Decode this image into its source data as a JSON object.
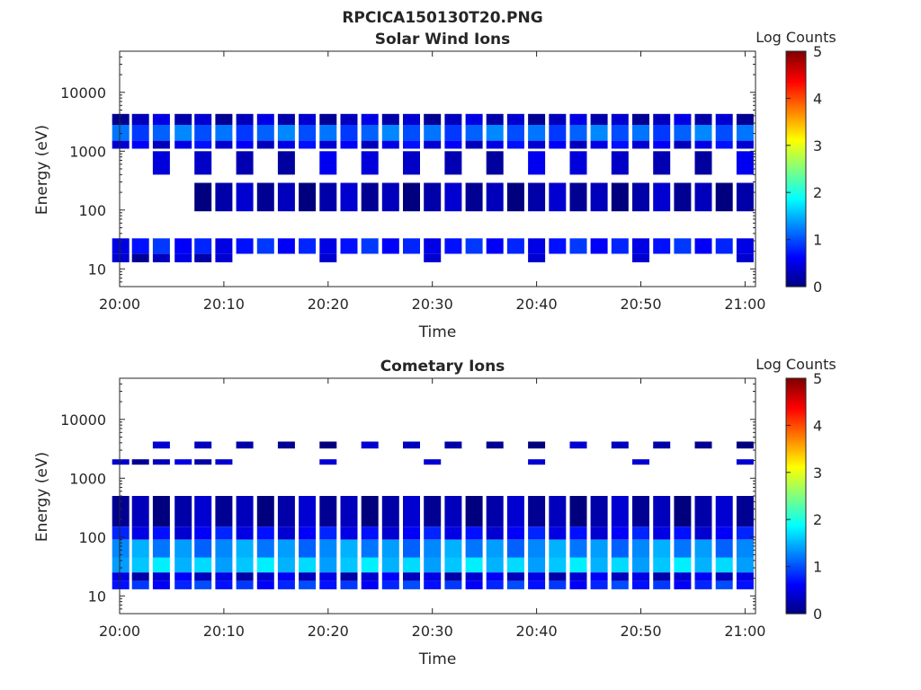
{
  "figure": {
    "suptitle": "RPCICA150130T20.PNG"
  },
  "colorbar": {
    "label": "Log Counts",
    "ticks": [
      "0",
      "1",
      "2",
      "3",
      "4",
      "5"
    ],
    "range": [
      0,
      5
    ],
    "colormap": [
      "#00007f",
      "#0000ff",
      "#007fff",
      "#00ffff",
      "#7fff7f",
      "#ffff00",
      "#ff7f00",
      "#ff0000",
      "#7f0000"
    ]
  },
  "chart_data": [
    {
      "type": "heatmap",
      "title": "Solar Wind Ions",
      "xlabel": "Time",
      "ylabel": "Energy (eV)",
      "x_tick_labels": [
        "20:00",
        "20:10",
        "20:20",
        "20:30",
        "20:40",
        "20:50",
        "21:00"
      ],
      "xlim_minutes": [
        0,
        61
      ],
      "y_tick_labels": [
        "10",
        "100",
        "1000",
        "10000"
      ],
      "y_scale": "log",
      "ylim": [
        5,
        50000
      ],
      "time_columns_minutes": [
        0.1,
        2.0,
        4.0,
        6.1,
        8.0,
        10.0,
        12.0,
        14.0,
        16.0,
        18.0,
        20.0,
        22.0,
        24.0,
        26.0,
        28.0,
        30.0,
        32.0,
        34.0,
        36.0,
        38.0,
        40.0,
        42.0,
        44.0,
        46.0,
        48.0,
        50.0,
        52.0,
        54.0,
        56.0,
        58.0,
        60.0
      ],
      "bands": [
        {
          "e_lo": 2800,
          "e_hi": 4300,
          "value": 0.3,
          "cols": "all_even"
        },
        {
          "e_lo": 1500,
          "e_hi": 2800,
          "value": 1.1,
          "cols": "all_even"
        },
        {
          "e_lo": 1100,
          "e_hi": 1500,
          "value": 0.5,
          "cols": "all_even"
        },
        {
          "e_lo": 400,
          "e_hi": 1000,
          "value": 0.35,
          "cols": "sparse"
        },
        {
          "e_lo": 95,
          "e_hi": 290,
          "value": 0.2,
          "cols": "from_8"
        },
        {
          "e_lo": 18,
          "e_hi": 33,
          "value": 0.7,
          "cols": "all"
        },
        {
          "e_lo": 13,
          "e_hi": 18,
          "value": 0.3,
          "cols": "early"
        }
      ]
    },
    {
      "type": "heatmap",
      "title": "Cometary Ions",
      "xlabel": "Time",
      "ylabel": "Energy (eV)",
      "x_tick_labels": [
        "20:00",
        "20:10",
        "20:20",
        "20:30",
        "20:40",
        "20:50",
        "21:00"
      ],
      "xlim_minutes": [
        0,
        61
      ],
      "y_tick_labels": [
        "10",
        "100",
        "1000",
        "10000"
      ],
      "y_scale": "log",
      "ylim": [
        5,
        50000
      ],
      "time_columns_minutes": [
        0.1,
        2.0,
        4.0,
        6.1,
        8.0,
        10.0,
        12.0,
        14.0,
        16.0,
        18.0,
        20.0,
        22.0,
        24.0,
        26.0,
        28.0,
        30.0,
        32.0,
        34.0,
        36.0,
        38.0,
        40.0,
        42.0,
        44.0,
        46.0,
        48.0,
        50.0,
        52.0,
        54.0,
        56.0,
        58.0,
        60.0
      ],
      "bands": [
        {
          "e_lo": 3200,
          "e_hi": 4200,
          "value": 0.2,
          "cols": "sparse"
        },
        {
          "e_lo": 1700,
          "e_hi": 2100,
          "value": 0.3,
          "cols": "early"
        },
        {
          "e_lo": 150,
          "e_hi": 500,
          "value": 0.2,
          "cols": "all"
        },
        {
          "e_lo": 90,
          "e_hi": 150,
          "value": 0.6,
          "cols": "all"
        },
        {
          "e_lo": 45,
          "e_hi": 90,
          "value": 1.3,
          "cols": "all"
        },
        {
          "e_lo": 25,
          "e_hi": 45,
          "value": 1.6,
          "cols": "all"
        },
        {
          "e_lo": 18,
          "e_hi": 25,
          "value": 0.4,
          "cols": "all"
        },
        {
          "e_lo": 13,
          "e_hi": 18,
          "value": 0.8,
          "cols": "all"
        }
      ]
    }
  ]
}
